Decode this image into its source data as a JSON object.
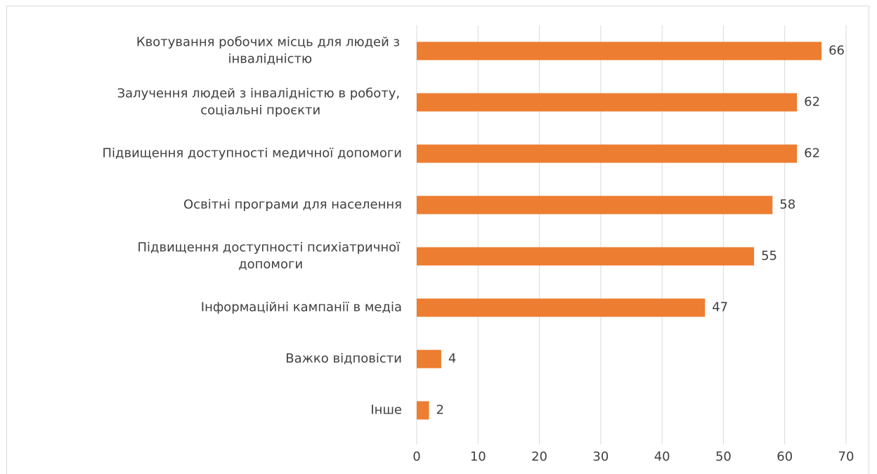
{
  "chart_data": {
    "type": "bar",
    "orientation": "horizontal",
    "categories": [
      "Квотування робочих місць для людей з інвалідністю",
      "Залучення людей з інвалідністю в роботу, соціальні проєкти",
      "Підвищення доступності медичної допомоги",
      "Освітні програми для населення",
      "Підвищення доступності психіатричної допомоги",
      "Інформаційні кампанії в медіа",
      "Важко відповісти",
      "Інше"
    ],
    "values": [
      66,
      62,
      62,
      58,
      55,
      47,
      4,
      2
    ],
    "color": "#ed7d31",
    "xlim": [
      0,
      70
    ],
    "xticks": [
      0,
      10,
      20,
      30,
      40,
      50,
      60,
      70
    ],
    "grid": true
  }
}
